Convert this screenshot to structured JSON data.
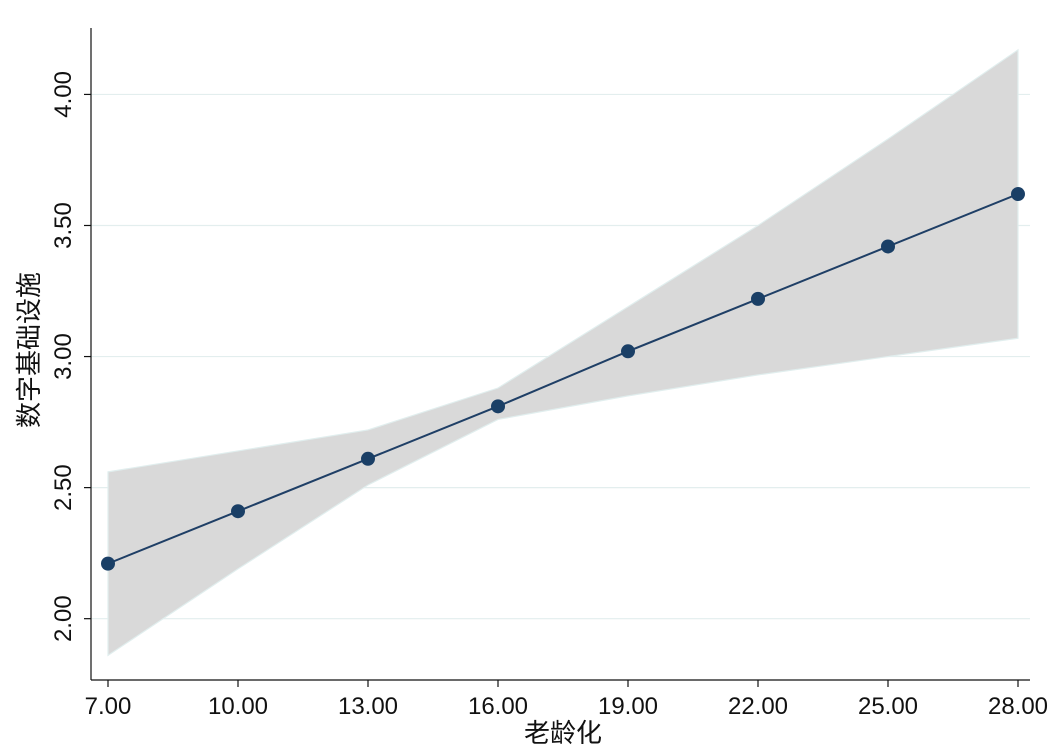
{
  "chart_data": {
    "type": "line",
    "xlabel": "老龄化",
    "ylabel": "数字基础设施",
    "x_ticks": [
      "7.00",
      "10.00",
      "13.00",
      "16.00",
      "19.00",
      "22.00",
      "25.00",
      "28.00"
    ],
    "y_ticks": [
      "2.00",
      "2.50",
      "3.00",
      "3.50",
      "4.00"
    ],
    "xlim": [
      7,
      28
    ],
    "ylim": [
      1.85,
      4.2
    ],
    "grid": true,
    "series": [
      {
        "x": [
          7,
          10,
          13,
          16,
          19,
          22,
          25,
          28
        ],
        "y": [
          2.21,
          2.41,
          2.61,
          2.81,
          3.02,
          3.22,
          3.42,
          3.62
        ],
        "ci_upper": [
          2.56,
          2.64,
          2.72,
          2.88,
          3.19,
          3.5,
          3.83,
          4.17
        ],
        "ci_lower": [
          1.86,
          2.19,
          2.51,
          2.76,
          2.85,
          2.93,
          3.0,
          3.07
        ]
      }
    ],
    "colors": {
      "line": "#1f3f66",
      "marker": "#1a3f66",
      "band": "#d9d9d9",
      "band_edge": "#e1eeee",
      "grid": "#e3eeee"
    }
  }
}
